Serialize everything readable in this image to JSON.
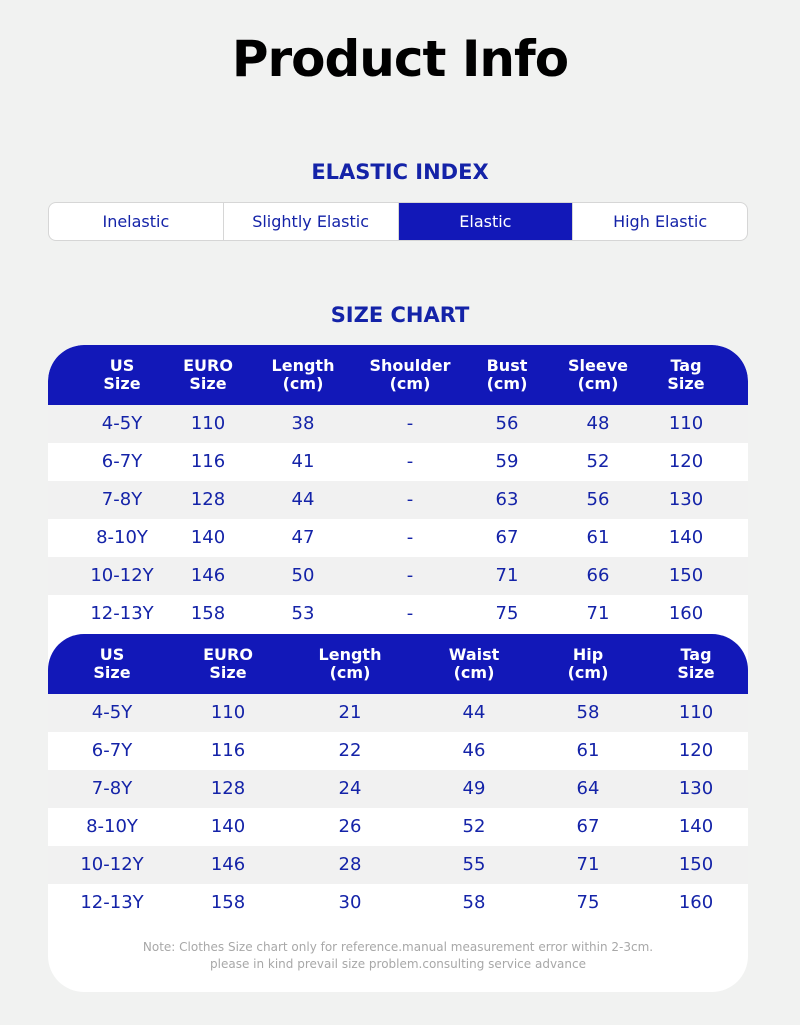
{
  "title": "Product Info",
  "elastic_index": {
    "title": "ELASTIC INDEX",
    "options": [
      "Inelastic",
      "Slightly Elastic",
      "Elastic",
      "High Elastic"
    ],
    "selected": "Elastic"
  },
  "size_chart": {
    "title": "SIZE CHART",
    "tops": {
      "headers": [
        "US\nSize",
        "EURO\nSize",
        "Length\n(cm)",
        "Shoulder\n(cm)",
        "Bust\n(cm)",
        "Sleeve\n(cm)",
        "Tag\nSize"
      ],
      "rows": [
        [
          "4-5Y",
          "110",
          "38",
          "-",
          "56",
          "48",
          "110"
        ],
        [
          "6-7Y",
          "116",
          "41",
          "-",
          "59",
          "52",
          "120"
        ],
        [
          "7-8Y",
          "128",
          "44",
          "-",
          "63",
          "56",
          "130"
        ],
        [
          "8-10Y",
          "140",
          "47",
          "-",
          "67",
          "61",
          "140"
        ],
        [
          "10-12Y",
          "146",
          "50",
          "-",
          "71",
          "66",
          "150"
        ],
        [
          "12-13Y",
          "158",
          "53",
          "-",
          "75",
          "71",
          "160"
        ]
      ]
    },
    "bottoms": {
      "headers": [
        "US\nSize",
        "EURO\nSize",
        "Length\n(cm)",
        "Waist\n(cm)",
        "Hip\n(cm)",
        "Tag\nSize"
      ],
      "rows": [
        [
          "4-5Y",
          "110",
          "21",
          "44",
          "58",
          "110"
        ],
        [
          "6-7Y",
          "116",
          "22",
          "46",
          "61",
          "120"
        ],
        [
          "7-8Y",
          "128",
          "24",
          "49",
          "64",
          "130"
        ],
        [
          "8-10Y",
          "140",
          "26",
          "52",
          "67",
          "140"
        ],
        [
          "10-12Y",
          "146",
          "28",
          "55",
          "71",
          "150"
        ],
        [
          "12-13Y",
          "158",
          "30",
          "58",
          "75",
          "160"
        ]
      ]
    },
    "note_line1": "Note: Clothes Size chart only for reference.manual measurement error within 2-3cm.",
    "note_line2": "please in kind prevail size problem.consulting service advance"
  }
}
